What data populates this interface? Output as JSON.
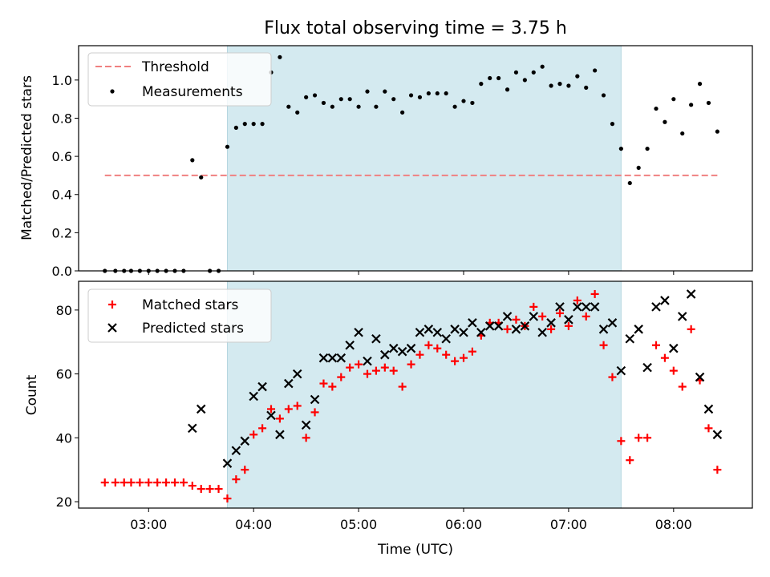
{
  "chart_data": [
    {
      "type": "scatter",
      "title": "Flux total observing time = 3.75 h",
      "ylabel": "Matched/Predicted stars",
      "ylim": [
        0,
        1.18
      ],
      "yticks": [
        "0.0",
        "0.2",
        "0.4",
        "0.6",
        "0.8",
        "1.0"
      ],
      "ytick_values": [
        0,
        0.2,
        0.4,
        0.6,
        0.8,
        1.0
      ],
      "legend_position": "upper-left",
      "threshold": {
        "name": "Threshold",
        "value": 0.5,
        "x_range": [
          "02:35",
          "08:25"
        ],
        "color": "#f08080"
      },
      "series": [
        {
          "name": "Measurements",
          "color": "#000000",
          "x": [
            "02:35",
            "02:41",
            "02:46",
            "02:50",
            "02:55",
            "03:00",
            "03:05",
            "03:10",
            "03:15",
            "03:20",
            "03:25",
            "03:30",
            "03:35",
            "03:40",
            "03:45",
            "03:50",
            "03:55",
            "04:00",
            "04:05",
            "04:10",
            "04:15",
            "04:20",
            "04:25",
            "04:30",
            "04:35",
            "04:40",
            "04:45",
            "04:50",
            "04:55",
            "05:00",
            "05:05",
            "05:10",
            "05:15",
            "05:20",
            "05:25",
            "05:30",
            "05:35",
            "05:40",
            "05:45",
            "05:50",
            "05:55",
            "06:00",
            "06:05",
            "06:10",
            "06:15",
            "06:20",
            "06:25",
            "06:30",
            "06:35",
            "06:40",
            "06:45",
            "06:50",
            "06:55",
            "07:00",
            "07:05",
            "07:10",
            "07:15",
            "07:20",
            "07:25",
            "07:30",
            "07:35",
            "07:40",
            "07:45",
            "07:50",
            "07:55",
            "08:00",
            "08:05",
            "08:10",
            "08:15",
            "08:20",
            "08:25"
          ],
          "y": [
            0,
            0,
            0,
            0,
            0,
            0,
            0,
            0,
            0,
            0,
            0.58,
            0.49,
            0,
            0,
            0.65,
            0.75,
            0.77,
            0.77,
            0.77,
            1.04,
            1.12,
            0.86,
            0.83,
            0.91,
            0.92,
            0.88,
            0.86,
            0.9,
            0.9,
            0.86,
            0.94,
            0.86,
            0.94,
            0.9,
            0.83,
            0.92,
            0.91,
            0.93,
            0.93,
            0.93,
            0.86,
            0.89,
            0.88,
            0.98,
            1.01,
            1.01,
            0.95,
            1.04,
            1.0,
            1.04,
            1.07,
            0.97,
            0.98,
            0.97,
            1.02,
            0.96,
            1.05,
            0.92,
            0.77,
            0.64,
            0.46,
            0.54,
            0.64,
            0.85,
            0.78,
            0.9,
            0.72,
            0.87,
            0.98,
            0.88,
            0.73
          ]
        }
      ]
    },
    {
      "type": "scatter",
      "xlabel": "Time (UTC)",
      "ylabel": "Count",
      "ylim": [
        18,
        89
      ],
      "yticks": [
        "20",
        "40",
        "60",
        "80"
      ],
      "ytick_values": [
        20,
        40,
        60,
        80
      ],
      "legend_position": "upper-left",
      "series": [
        {
          "name": "Matched stars",
          "color": "#ff0000",
          "marker": "plus",
          "x": [
            "02:35",
            "02:41",
            "02:46",
            "02:50",
            "02:55",
            "03:00",
            "03:05",
            "03:10",
            "03:15",
            "03:20",
            "03:25",
            "03:30",
            "03:35",
            "03:40",
            "03:45",
            "03:50",
            "03:55",
            "04:00",
            "04:05",
            "04:10",
            "04:15",
            "04:20",
            "04:25",
            "04:30",
            "04:35",
            "04:40",
            "04:45",
            "04:50",
            "04:55",
            "05:00",
            "05:05",
            "05:10",
            "05:15",
            "05:20",
            "05:25",
            "05:30",
            "05:35",
            "05:40",
            "05:45",
            "05:50",
            "05:55",
            "06:00",
            "06:05",
            "06:10",
            "06:15",
            "06:20",
            "06:25",
            "06:30",
            "06:35",
            "06:40",
            "06:45",
            "06:50",
            "06:55",
            "07:00",
            "07:05",
            "07:10",
            "07:15",
            "07:20",
            "07:25",
            "07:30",
            "07:35",
            "07:40",
            "07:45",
            "07:50",
            "07:55",
            "08:00",
            "08:05",
            "08:10",
            "08:15",
            "08:20",
            "08:25"
          ],
          "y": [
            26,
            26,
            26,
            26,
            26,
            26,
            26,
            26,
            26,
            26,
            25,
            24,
            24,
            24,
            21,
            27,
            30,
            41,
            43,
            49,
            46,
            49,
            50,
            40,
            48,
            57,
            56,
            59,
            62,
            63,
            60,
            61,
            62,
            61,
            56,
            63,
            66,
            69,
            68,
            66,
            64,
            65,
            67,
            72,
            76,
            76,
            74,
            77,
            75,
            81,
            78,
            74,
            79,
            75,
            83,
            78,
            85,
            69,
            59,
            39,
            33,
            40,
            40,
            69,
            65,
            61,
            56,
            74,
            58,
            43,
            30
          ]
        },
        {
          "name": "Predicted stars",
          "color": "#000000",
          "marker": "x",
          "x": [
            "03:25",
            "03:30",
            "03:45",
            "03:50",
            "03:55",
            "04:00",
            "04:05",
            "04:10",
            "04:15",
            "04:20",
            "04:25",
            "04:30",
            "04:35",
            "04:40",
            "04:45",
            "04:50",
            "04:55",
            "05:00",
            "05:05",
            "05:10",
            "05:15",
            "05:20",
            "05:25",
            "05:30",
            "05:35",
            "05:40",
            "05:45",
            "05:50",
            "05:55",
            "06:00",
            "06:05",
            "06:10",
            "06:15",
            "06:20",
            "06:25",
            "06:30",
            "06:35",
            "06:40",
            "06:45",
            "06:50",
            "06:55",
            "07:00",
            "07:05",
            "07:10",
            "07:15",
            "07:20",
            "07:25",
            "07:30",
            "07:35",
            "07:40",
            "07:45",
            "07:50",
            "07:55",
            "08:00",
            "08:05",
            "08:10",
            "08:15",
            "08:20",
            "08:25"
          ],
          "y": [
            43,
            49,
            32,
            36,
            39,
            53,
            56,
            47,
            41,
            57,
            60,
            44,
            52,
            65,
            65,
            65,
            69,
            73,
            64,
            71,
            66,
            68,
            67,
            68,
            73,
            74,
            73,
            71,
            74,
            73,
            76,
            73,
            75,
            75,
            78,
            74,
            75,
            78,
            73,
            76,
            81,
            77,
            81,
            81,
            81,
            74,
            76,
            61,
            71,
            74,
            62,
            81,
            83,
            68,
            78,
            85,
            59,
            49,
            41
          ]
        }
      ]
    }
  ],
  "x_axis": {
    "label": "Time (UTC)",
    "range": [
      "02:20",
      "08:45"
    ],
    "ticks": [
      "03:00",
      "04:00",
      "05:00",
      "06:00",
      "07:00",
      "08:00"
    ]
  },
  "observing_window": {
    "start": "03:45",
    "end": "07:30",
    "color": "#d4eaf0"
  }
}
